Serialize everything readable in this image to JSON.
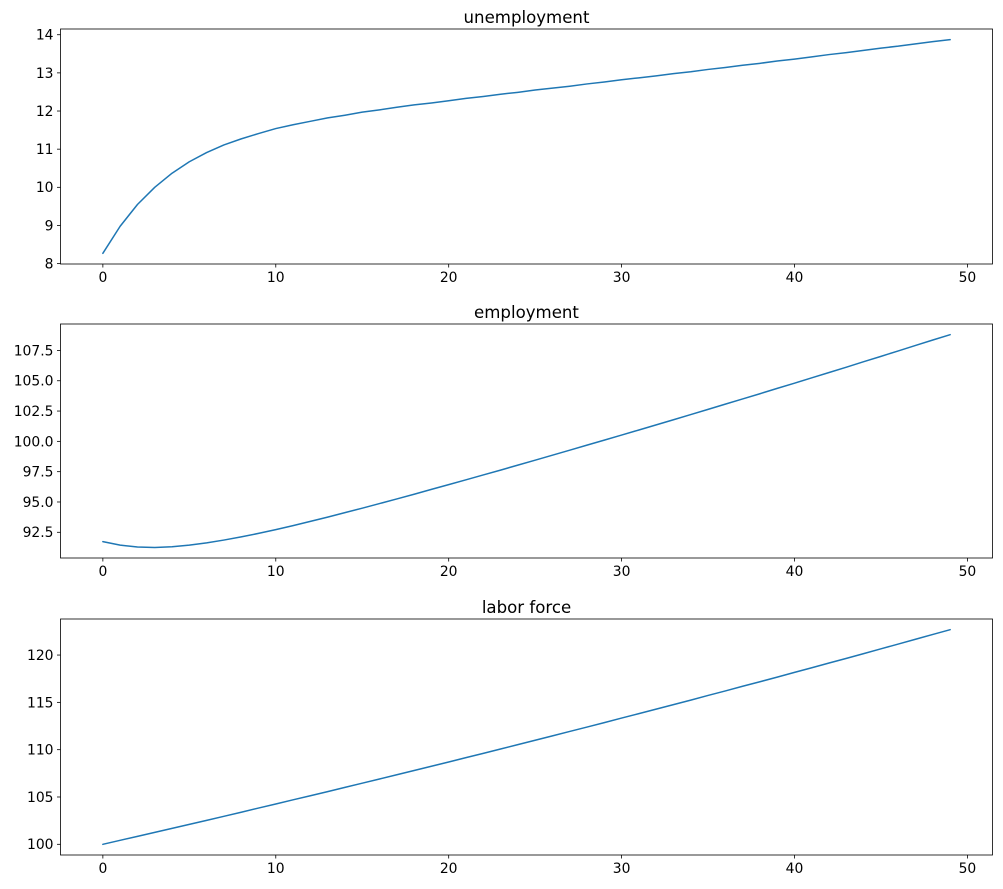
{
  "figure": {
    "background": "#ffffff",
    "line_color": "#1f77b4",
    "spine_color": "#000000",
    "text_color": "#000000"
  },
  "chart_data": [
    {
      "type": "line",
      "title": "unemployment",
      "xlabel": "",
      "ylabel": "",
      "grid": false,
      "legend": "none",
      "xlim": [
        -2.45,
        51.45
      ],
      "ylim": [
        7.99,
        14.15
      ],
      "xticks": [
        0,
        10,
        20,
        30,
        40,
        50
      ],
      "xtick_labels": [
        "0",
        "10",
        "20",
        "30",
        "40",
        "50"
      ],
      "yticks": [
        8,
        9,
        10,
        11,
        12,
        13,
        14
      ],
      "ytick_labels": [
        "8",
        "9",
        "10",
        "11",
        "12",
        "13",
        "14"
      ],
      "x": [
        0,
        1,
        2,
        3,
        4,
        5,
        6,
        7,
        8,
        9,
        10,
        11,
        12,
        13,
        14,
        15,
        16,
        17,
        18,
        19,
        20,
        21,
        22,
        23,
        24,
        25,
        26,
        27,
        28,
        29,
        30,
        31,
        32,
        33,
        34,
        35,
        36,
        37,
        38,
        39,
        40,
        41,
        42,
        43,
        44,
        45,
        46,
        47,
        48,
        49
      ],
      "values": [
        8.27,
        8.98,
        9.55,
        10.0,
        10.37,
        10.67,
        10.91,
        11.11,
        11.27,
        11.41,
        11.54,
        11.64,
        11.73,
        11.82,
        11.89,
        11.97,
        12.03,
        12.1,
        12.16,
        12.21,
        12.27,
        12.33,
        12.38,
        12.44,
        12.49,
        12.55,
        12.6,
        12.65,
        12.71,
        12.76,
        12.82,
        12.87,
        12.92,
        12.98,
        13.03,
        13.09,
        13.14,
        13.2,
        13.25,
        13.31,
        13.36,
        13.42,
        13.48,
        13.53,
        13.59,
        13.65,
        13.7,
        13.76,
        13.82,
        13.87
      ]
    },
    {
      "type": "line",
      "title": "employment",
      "xlabel": "",
      "ylabel": "",
      "grid": false,
      "legend": "none",
      "xlim": [
        -2.45,
        51.45
      ],
      "ylim": [
        90.38,
        109.68
      ],
      "xticks": [
        0,
        10,
        20,
        30,
        40,
        50
      ],
      "xtick_labels": [
        "0",
        "10",
        "20",
        "30",
        "40",
        "50"
      ],
      "yticks": [
        92.5,
        95.0,
        97.5,
        100.0,
        102.5,
        105.0,
        107.5
      ],
      "ytick_labels": [
        "92.5",
        "95.0",
        "97.5",
        "100.0",
        "102.5",
        "105.0",
        "107.5"
      ],
      "x": [
        0,
        1,
        2,
        3,
        4,
        5,
        6,
        7,
        8,
        9,
        10,
        11,
        12,
        13,
        14,
        15,
        16,
        17,
        18,
        19,
        20,
        21,
        22,
        23,
        24,
        25,
        26,
        27,
        28,
        29,
        30,
        31,
        32,
        33,
        34,
        35,
        36,
        37,
        38,
        39,
        40,
        41,
        42,
        43,
        44,
        45,
        46,
        47,
        48,
        49
      ],
      "values": [
        91.73,
        91.44,
        91.29,
        91.25,
        91.31,
        91.44,
        91.63,
        91.86,
        92.12,
        92.41,
        92.72,
        93.05,
        93.4,
        93.75,
        94.12,
        94.49,
        94.87,
        95.25,
        95.64,
        96.04,
        96.43,
        96.83,
        97.23,
        97.63,
        98.04,
        98.45,
        98.86,
        99.27,
        99.69,
        100.1,
        100.52,
        100.94,
        101.36,
        101.78,
        102.21,
        102.64,
        103.07,
        103.5,
        103.93,
        104.37,
        104.8,
        105.24,
        105.68,
        106.12,
        106.57,
        107.01,
        107.46,
        107.91,
        108.36,
        108.8
      ]
    },
    {
      "type": "line",
      "title": "labor force",
      "xlabel": "",
      "ylabel": "",
      "grid": false,
      "legend": "none",
      "xlim": [
        -2.45,
        51.45
      ],
      "ylim": [
        98.87,
        123.81
      ],
      "xticks": [
        0,
        10,
        20,
        30,
        40,
        50
      ],
      "xtick_labels": [
        "0",
        "10",
        "20",
        "30",
        "40",
        "50"
      ],
      "yticks": [
        100,
        105,
        110,
        115,
        120
      ],
      "ytick_labels": [
        "100",
        "105",
        "110",
        "115",
        "120"
      ],
      "x": [
        0,
        1,
        2,
        3,
        4,
        5,
        6,
        7,
        8,
        9,
        10,
        11,
        12,
        13,
        14,
        15,
        16,
        17,
        18,
        19,
        20,
        21,
        22,
        23,
        24,
        25,
        26,
        27,
        28,
        29,
        30,
        31,
        32,
        33,
        34,
        35,
        36,
        37,
        38,
        39,
        40,
        41,
        42,
        43,
        44,
        45,
        46,
        47,
        48,
        49
      ],
      "values": [
        100.0,
        100.42,
        100.84,
        101.26,
        101.68,
        102.11,
        102.53,
        102.96,
        103.39,
        103.83,
        104.26,
        104.7,
        105.13,
        105.57,
        106.02,
        106.46,
        106.9,
        107.35,
        107.8,
        108.25,
        108.7,
        109.16,
        109.61,
        110.07,
        110.53,
        111.0,
        111.46,
        111.93,
        112.39,
        112.86,
        113.34,
        113.81,
        114.29,
        114.76,
        115.24,
        115.73,
        116.21,
        116.7,
        117.18,
        117.67,
        118.17,
        118.66,
        119.16,
        119.65,
        120.15,
        120.66,
        121.16,
        121.67,
        122.18,
        122.68
      ]
    }
  ]
}
